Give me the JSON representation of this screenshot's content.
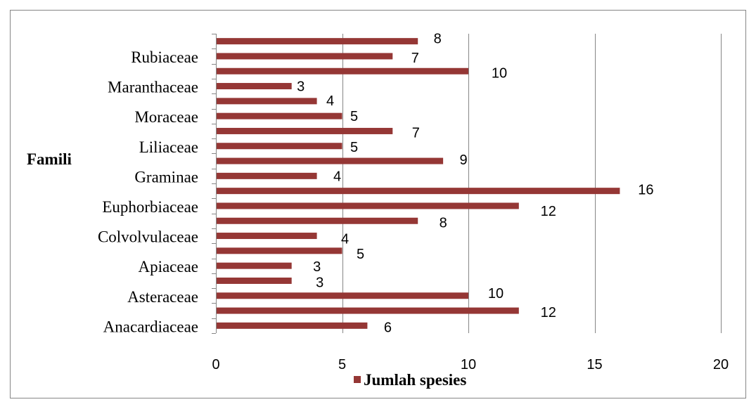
{
  "chart_data": {
    "type": "bar",
    "orientation": "horizontal",
    "ylabel": "Famili",
    "categories": [
      "",
      "Rubiaceae",
      "",
      "Maranthaceae",
      "",
      "Moraceae",
      "",
      "Liliaceae",
      "",
      "Graminae",
      "",
      "Euphorbiaceae",
      "",
      "Colvolvulaceae",
      "",
      "Apiaceae",
      "",
      "Asteraceae",
      "",
      "Anacardiaceae"
    ],
    "series": [
      {
        "name": "Jumlah spesies",
        "color": "#953735",
        "values": [
          8,
          7,
          10,
          3,
          4,
          5,
          7,
          5,
          9,
          4,
          16,
          12,
          8,
          4,
          5,
          3,
          3,
          10,
          12,
          6
        ]
      }
    ],
    "xlim": [
      0,
      20
    ],
    "xticks": [
      0,
      5,
      10,
      15,
      20
    ],
    "data_labels": true,
    "grid": "vertical",
    "legend": "bottom"
  }
}
